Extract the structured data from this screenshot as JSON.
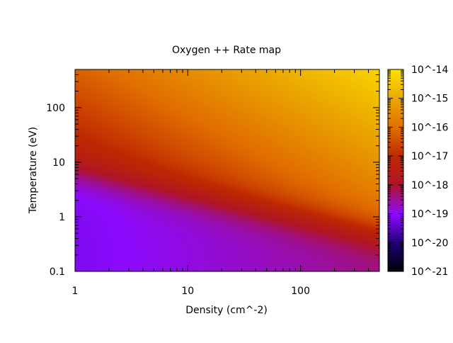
{
  "chart_data": {
    "type": "heatmap",
    "title": "Oxygen ++ Rate map",
    "xlabel": "Density (cm^-2)",
    "ylabel": "Temperature (eV)",
    "x_scale": "log",
    "y_scale": "log",
    "xlim": [
      1,
      500
    ],
    "ylim": [
      0.1,
      500
    ],
    "x_ticks": [
      "1",
      "10",
      "100"
    ],
    "y_ticks": [
      "0.1",
      "1",
      "10",
      "100"
    ],
    "colorbar": {
      "scale": "log",
      "range": [
        "1e-21",
        "1e-14"
      ],
      "tick_labels": [
        "10^-21",
        "10^-20",
        "10^-19",
        "10^-18",
        "10^-17",
        "10^-16",
        "10^-15",
        "10^-14"
      ],
      "palette": "black-blue-violet-red-orange-yellow"
    },
    "description_of_field": {
      "low_temperature_low_density": "violet (~1e-19)",
      "mid_temperature_band": "dark red (~1e-17.5)",
      "high_temperature_high_density": "yellow (~1e-14.2)"
    }
  }
}
